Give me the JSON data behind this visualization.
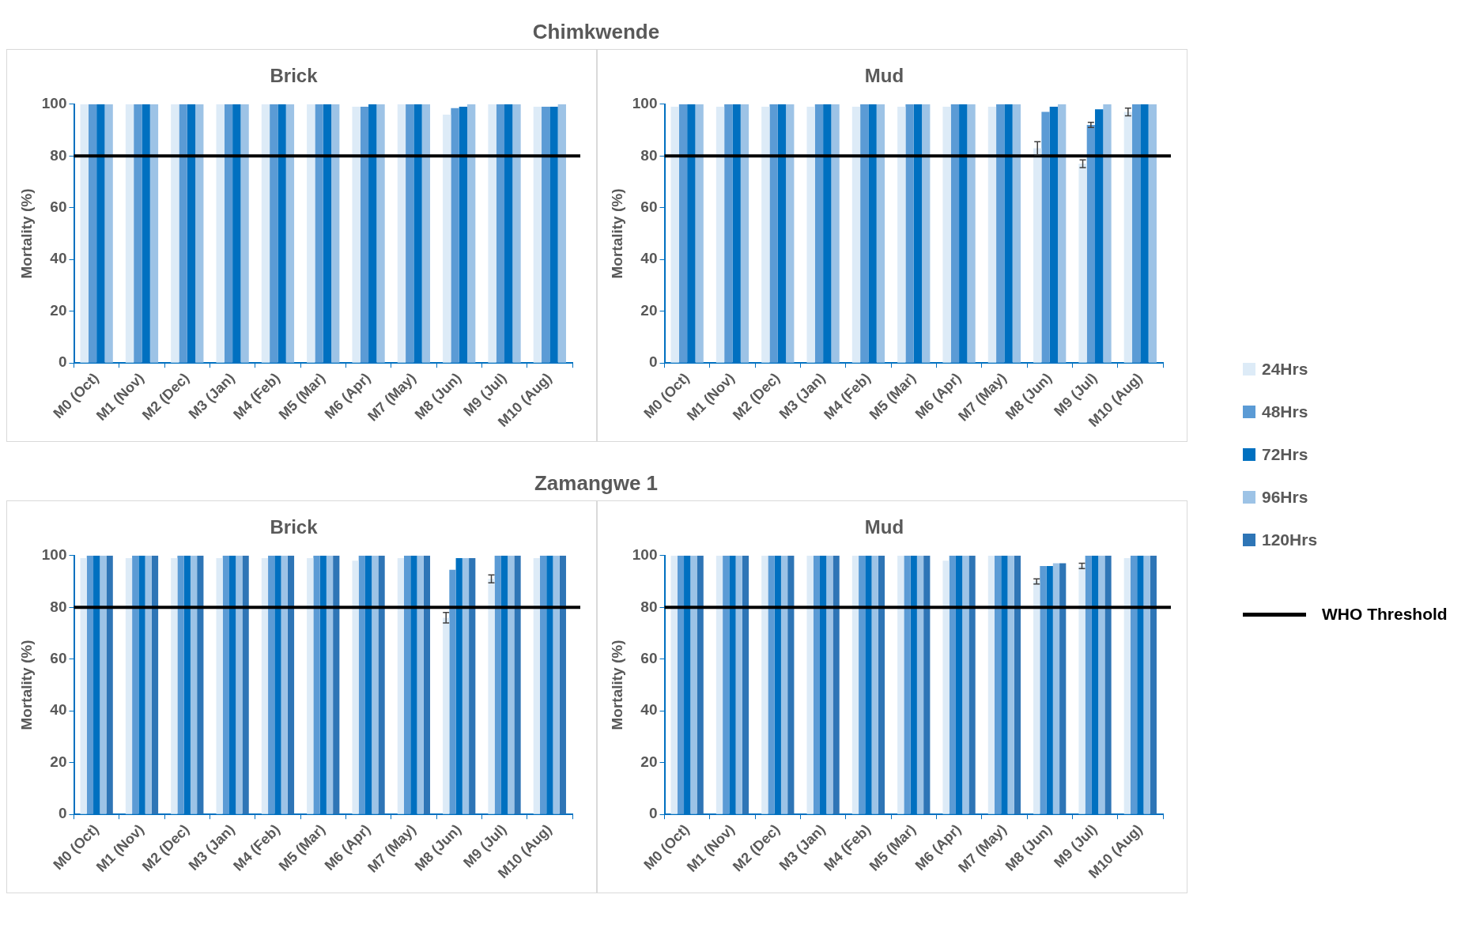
{
  "chart_data": [
    {
      "type": "bar",
      "title": "Chimkwende",
      "subtitle": "Brick",
      "ylabel": "Mortality (%)",
      "categories": [
        "M0 (Oct)",
        "M1 (Nov)",
        "M2 (Dec)",
        "M3 (Jan)",
        "M4 (Feb)",
        "M5 (Mar)",
        "M6 (Apr)",
        "M7 (May)",
        "M8 (Jun)",
        "M9 (Jul)",
        "M10 (Aug)"
      ],
      "ylim": [
        0,
        100
      ],
      "yticks": [
        0,
        20,
        40,
        60,
        80,
        100
      ],
      "series": [
        {
          "name": "24Hrs",
          "color": "#ddebf7",
          "values": [
            100,
            100,
            100,
            100,
            100,
            100,
            99,
            100,
            96,
            100,
            99
          ]
        },
        {
          "name": "48Hrs",
          "color": "#5b9bd5",
          "values": [
            100,
            100,
            100,
            100,
            100,
            100,
            99,
            100,
            98.5,
            100,
            99
          ]
        },
        {
          "name": "72Hrs",
          "color": "#0070c0",
          "values": [
            100,
            100,
            100,
            100,
            100,
            100,
            100,
            100,
            99,
            100,
            99
          ]
        },
        {
          "name": "96Hrs",
          "color": "#9dc3e6",
          "values": [
            100,
            100,
            100,
            100,
            100,
            100,
            100,
            100,
            100,
            100,
            100
          ]
        }
      ],
      "ref_lines": [
        {
          "axis": "y",
          "value": 80,
          "color": "#000000"
        }
      ],
      "legend": "right"
    },
    {
      "type": "bar",
      "subtitle": "Mud",
      "ylabel": "Mortality (%)",
      "categories": [
        "M0 (Oct)",
        "M1 (Nov)",
        "M2 (Dec)",
        "M3 (Jan)",
        "M4 (Feb)",
        "M5 (Mar)",
        "M6 (Apr)",
        "M7 (May)",
        "M8 (Jun)",
        "M9 (Jul)",
        "M10 (Aug)"
      ],
      "ylim": [
        0,
        100
      ],
      "yticks": [
        0,
        20,
        40,
        60,
        80,
        100
      ],
      "series": [
        {
          "name": "24Hrs",
          "color": "#ddebf7",
          "values": [
            99,
            99,
            99,
            99,
            99,
            99,
            99,
            99,
            83,
            77,
            97
          ],
          "errors": [
            null,
            null,
            null,
            null,
            null,
            null,
            null,
            null,
            2.5,
            1.5,
            1.5
          ]
        },
        {
          "name": "48Hrs",
          "color": "#5b9bd5",
          "values": [
            100,
            100,
            100,
            100,
            100,
            100,
            100,
            100,
            97,
            92,
            100
          ],
          "errors": [
            null,
            null,
            null,
            null,
            null,
            null,
            null,
            null,
            null,
            1,
            null
          ]
        },
        {
          "name": "72Hrs",
          "color": "#0070c0",
          "values": [
            100,
            100,
            100,
            100,
            100,
            100,
            100,
            100,
            99,
            98,
            100
          ]
        },
        {
          "name": "96Hrs",
          "color": "#9dc3e6",
          "values": [
            100,
            100,
            100,
            100,
            100,
            100,
            100,
            100,
            100,
            100,
            100
          ]
        }
      ],
      "ref_lines": [
        {
          "axis": "y",
          "value": 80,
          "color": "#000000"
        }
      ],
      "legend": "right"
    },
    {
      "type": "bar",
      "title": "Zamangwe 1",
      "subtitle": "Brick",
      "ylabel": "Mortality (%)",
      "categories": [
        "M0 (Oct)",
        "M1 (Nov)",
        "M2 (Dec)",
        "M3 (Jan)",
        "M4 (Feb)",
        "M5 (Mar)",
        "M6 (Apr)",
        "M7 (May)",
        "M8 (Jun)",
        "M9 (Jul)",
        "M10 (Aug)"
      ],
      "ylim": [
        0,
        100
      ],
      "yticks": [
        0,
        20,
        40,
        60,
        80,
        100
      ],
      "series": [
        {
          "name": "24Hrs",
          "color": "#ddebf7",
          "values": [
            99,
            99,
            99,
            99,
            99,
            99,
            98,
            99,
            76,
            91,
            99
          ],
          "errors": [
            null,
            null,
            null,
            null,
            null,
            null,
            null,
            null,
            2,
            1.5,
            null
          ]
        },
        {
          "name": "48Hrs",
          "color": "#5b9bd5",
          "values": [
            100,
            100,
            100,
            100,
            100,
            100,
            100,
            100,
            94.5,
            100,
            100
          ]
        },
        {
          "name": "72Hrs",
          "color": "#0070c0",
          "values": [
            100,
            100,
            100,
            100,
            100,
            100,
            100,
            100,
            99,
            100,
            100
          ]
        },
        {
          "name": "96Hrs",
          "color": "#9dc3e6",
          "values": [
            100,
            100,
            100,
            100,
            100,
            100,
            100,
            100,
            99,
            100,
            100
          ]
        },
        {
          "name": "120Hrs",
          "color": "#2e75b6",
          "values": [
            100,
            100,
            100,
            100,
            100,
            100,
            100,
            100,
            99,
            100,
            100
          ]
        }
      ],
      "ref_lines": [
        {
          "axis": "y",
          "value": 80,
          "color": "#000000"
        }
      ],
      "legend": "right"
    },
    {
      "type": "bar",
      "subtitle": "Mud",
      "ylabel": "Mortality (%)",
      "categories": [
        "M0 (Oct)",
        "M1 (Nov)",
        "M2 (Dec)",
        "M3 (Jan)",
        "M4 (Feb)",
        "M5 (Mar)",
        "M6 (Apr)",
        "M7 (May)",
        "M8 (Jun)",
        "M9 (Jul)",
        "M10 (Aug)"
      ],
      "ylim": [
        0,
        100
      ],
      "yticks": [
        0,
        20,
        40,
        60,
        80,
        100
      ],
      "series": [
        {
          "name": "24Hrs",
          "color": "#ddebf7",
          "values": [
            100,
            100,
            100,
            100,
            100,
            100,
            98,
            100,
            90,
            96,
            99
          ],
          "errors": [
            null,
            null,
            null,
            null,
            null,
            null,
            null,
            null,
            1,
            1,
            null
          ]
        },
        {
          "name": "48Hrs",
          "color": "#5b9bd5",
          "values": [
            100,
            100,
            100,
            100,
            100,
            100,
            100,
            100,
            96,
            100,
            100
          ]
        },
        {
          "name": "72Hrs",
          "color": "#0070c0",
          "values": [
            100,
            100,
            100,
            100,
            100,
            100,
            100,
            100,
            96,
            100,
            100
          ]
        },
        {
          "name": "96Hrs",
          "color": "#9dc3e6",
          "values": [
            100,
            100,
            100,
            100,
            100,
            100,
            100,
            100,
            97,
            100,
            100
          ]
        },
        {
          "name": "120Hrs",
          "color": "#2e75b6",
          "values": [
            100,
            100,
            100,
            100,
            100,
            100,
            100,
            100,
            97,
            100,
            100
          ]
        }
      ],
      "ref_lines": [
        {
          "axis": "y",
          "value": 80,
          "label": "WHO Threshold",
          "color": "#000000"
        }
      ],
      "legend": "right"
    }
  ]
}
